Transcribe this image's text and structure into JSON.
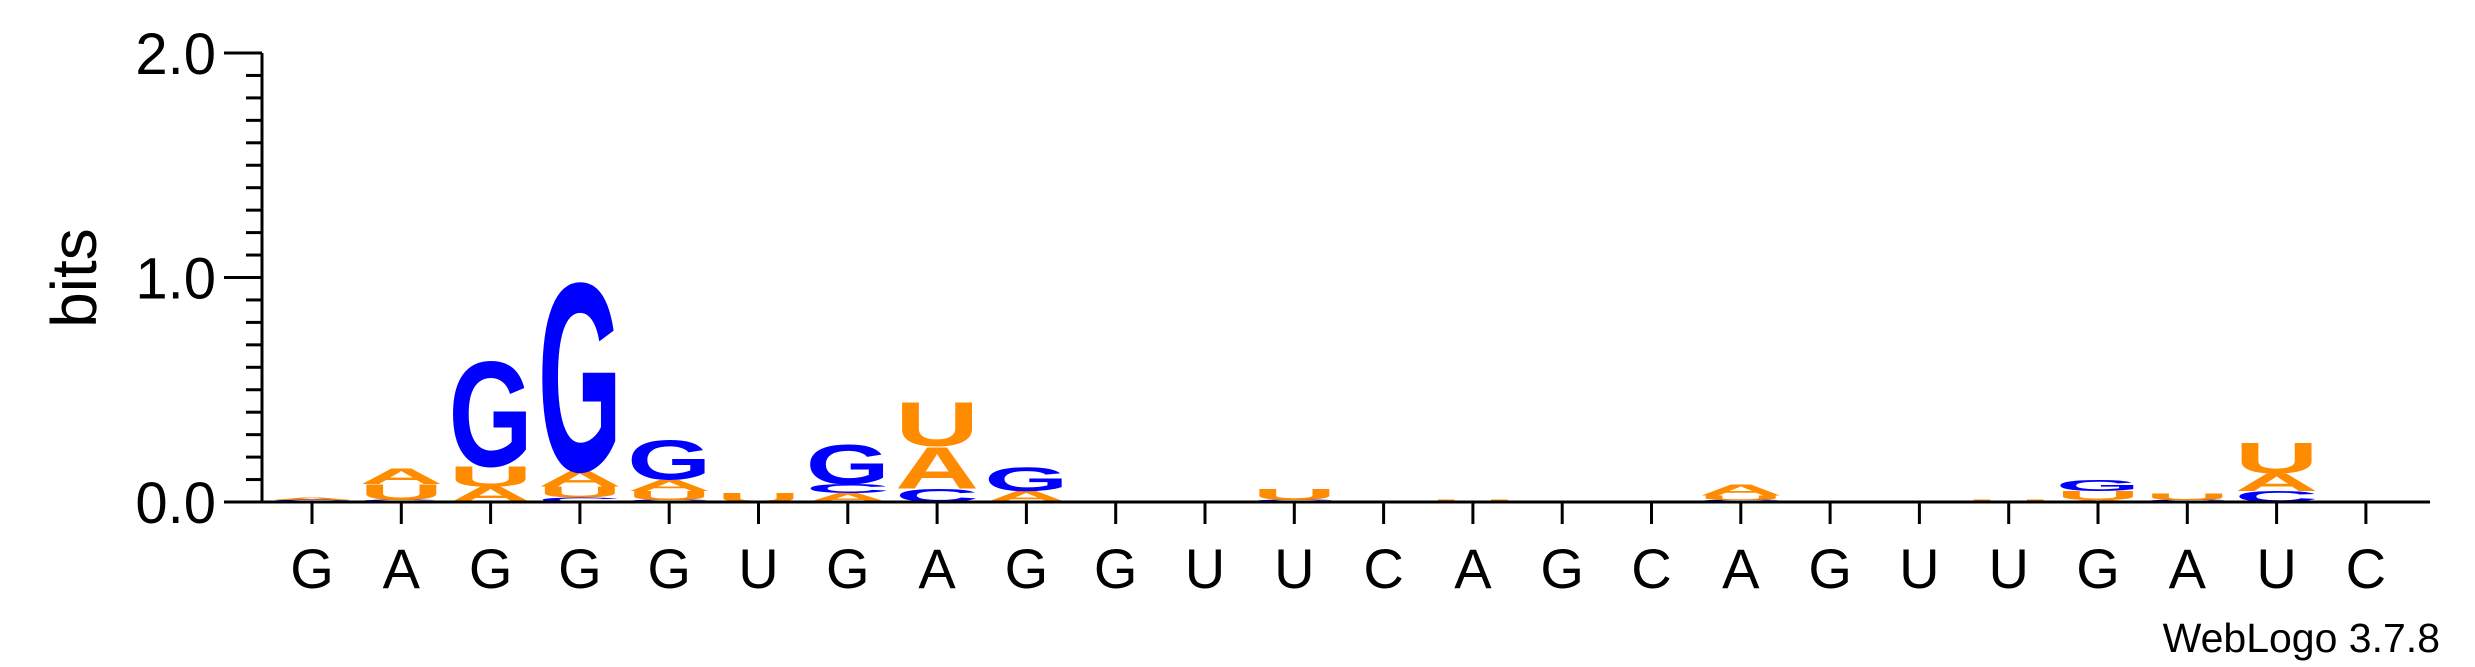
{
  "chart_data": {
    "type": "sequence-logo",
    "ylabel": "bits",
    "ylim": [
      0,
      2.0
    ],
    "yticks": [
      {
        "value": 0.0,
        "label": "0.0"
      },
      {
        "value": 1.0,
        "label": "1.0"
      },
      {
        "value": 2.0,
        "label": "2.0"
      }
    ],
    "x_labels": [
      "G",
      "A",
      "G",
      "G",
      "G",
      "U",
      "G",
      "A",
      "G",
      "G",
      "U",
      "U",
      "C",
      "A",
      "G",
      "C",
      "A",
      "G",
      "U",
      "U",
      "G",
      "A",
      "U",
      "C"
    ],
    "colors": {
      "A": "#ff8c00",
      "U": "#ff8c00",
      "G": "#0000ff",
      "C": "#0000ff"
    },
    "columns": [
      {
        "position": 1,
        "letters": [
          {
            "base": "C",
            "bits": 0.01
          },
          {
            "base": "A",
            "bits": 0.01
          }
        ]
      },
      {
        "position": 2,
        "letters": [
          {
            "base": "G",
            "bits": 0.01
          },
          {
            "base": "U",
            "bits": 0.07
          },
          {
            "base": "A",
            "bits": 0.07
          }
        ]
      },
      {
        "position": 3,
        "letters": [
          {
            "base": "A",
            "bits": 0.07
          },
          {
            "base": "U",
            "bits": 0.09
          },
          {
            "base": "G",
            "bits": 0.48
          }
        ]
      },
      {
        "position": 4,
        "letters": [
          {
            "base": "C",
            "bits": 0.02
          },
          {
            "base": "U",
            "bits": 0.05
          },
          {
            "base": "A",
            "bits": 0.07
          },
          {
            "base": "G",
            "bits": 0.86
          }
        ]
      },
      {
        "position": 5,
        "letters": [
          {
            "base": "C",
            "bits": 0.01
          },
          {
            "base": "U",
            "bits": 0.04
          },
          {
            "base": "A",
            "bits": 0.05
          },
          {
            "base": "G",
            "bits": 0.18
          }
        ]
      },
      {
        "position": 6,
        "letters": [
          {
            "base": "U",
            "bits": 0.04
          }
        ]
      },
      {
        "position": 7,
        "letters": [
          {
            "base": "A",
            "bits": 0.04
          },
          {
            "base": "C",
            "bits": 0.04
          },
          {
            "base": "G",
            "bits": 0.18
          }
        ]
      },
      {
        "position": 8,
        "letters": [
          {
            "base": "C",
            "bits": 0.06
          },
          {
            "base": "A",
            "bits": 0.19
          },
          {
            "base": "U",
            "bits": 0.2
          }
        ]
      },
      {
        "position": 9,
        "letters": [
          {
            "base": "A",
            "bits": 0.05
          },
          {
            "base": "G",
            "bits": 0.11
          }
        ]
      },
      {
        "position": 10,
        "letters": []
      },
      {
        "position": 11,
        "letters": []
      },
      {
        "position": 12,
        "letters": [
          {
            "base": "C",
            "bits": 0.01
          },
          {
            "base": "U",
            "bits": 0.05
          }
        ]
      },
      {
        "position": 13,
        "letters": []
      },
      {
        "position": 14,
        "letters": [
          {
            "base": "U",
            "bits": 0.01
          }
        ]
      },
      {
        "position": 15,
        "letters": []
      },
      {
        "position": 16,
        "letters": []
      },
      {
        "position": 17,
        "letters": [
          {
            "base": "C",
            "bits": 0.01
          },
          {
            "base": "U",
            "bits": 0.02
          },
          {
            "base": "A",
            "bits": 0.05
          }
        ]
      },
      {
        "position": 18,
        "letters": []
      },
      {
        "position": 19,
        "letters": []
      },
      {
        "position": 20,
        "letters": [
          {
            "base": "U",
            "bits": 0.01
          }
        ]
      },
      {
        "position": 21,
        "letters": [
          {
            "base": "A",
            "bits": 0.01
          },
          {
            "base": "U",
            "bits": 0.04
          },
          {
            "base": "G",
            "bits": 0.05
          }
        ]
      },
      {
        "position": 22,
        "letters": [
          {
            "base": "C",
            "bits": 0.01
          },
          {
            "base": "U",
            "bits": 0.03
          }
        ]
      },
      {
        "position": 23,
        "letters": [
          {
            "base": "C",
            "bits": 0.05
          },
          {
            "base": "A",
            "bits": 0.08
          },
          {
            "base": "U",
            "bits": 0.14
          }
        ]
      },
      {
        "position": 24,
        "letters": []
      }
    ]
  },
  "credit": "WebLogo 3.7.8"
}
